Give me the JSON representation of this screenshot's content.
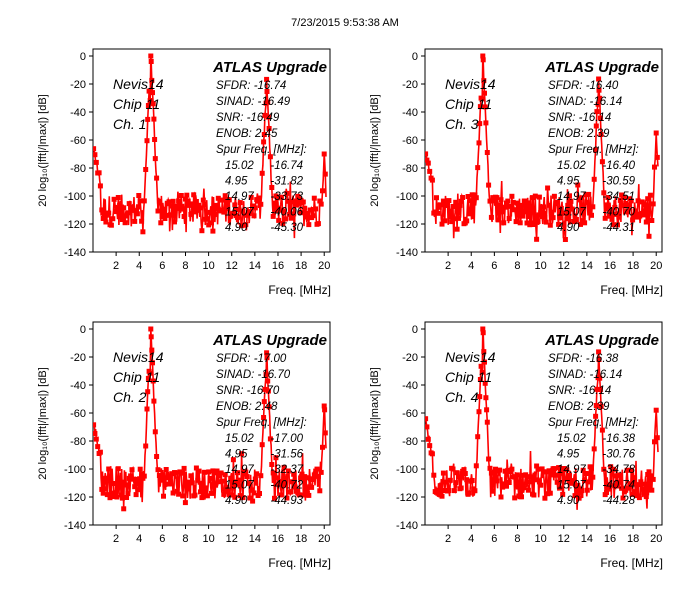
{
  "timestamp": "7/23/2015 9:53:38 AM",
  "colors": {
    "trace": "#ff0000",
    "frame": "#000000",
    "background": "#ffffff"
  },
  "chart_data": [
    {
      "type": "line",
      "title": "ATLAS Upgrade",
      "xlabel": "Freq. [MHz]",
      "ylabel": "20 log₁₀(|fft|/|max|)  [dB]",
      "xlim": [
        0,
        20.5
      ],
      "ylim": [
        -140,
        5
      ],
      "xticks": [
        2,
        4,
        6,
        8,
        10,
        12,
        14,
        16,
        18,
        20
      ],
      "yticks": [
        0,
        -20,
        -40,
        -60,
        -80,
        -100,
        -120,
        -140
      ],
      "labels": [
        "Nevis14",
        "Chip 11",
        "Ch. 1"
      ],
      "stats": [
        "SFDR: -16.74",
        "SINAD: -16.49",
        "SNR: -16.49",
        "ENOB: 2.45",
        "Spur Freq. [MHz]:"
      ],
      "spurs": [
        {
          "freq": "15.02",
          "level": "-16.74"
        },
        {
          "freq": "4.95",
          "level": "-31.82"
        },
        {
          "freq": "14.97",
          "level": "-33.73"
        },
        {
          "freq": "15.07",
          "level": "-40.06"
        },
        {
          "freq": "4.90",
          "level": "-45.30"
        }
      ],
      "peaks": [
        {
          "x": 5.0,
          "y": 0
        },
        {
          "x": 15.02,
          "y": -16.74
        },
        {
          "x": 4.95,
          "y": -31.82
        },
        {
          "x": 14.97,
          "y": -33.73
        },
        {
          "x": 20.0,
          "y": -70
        }
      ],
      "noise_floor": -110
    },
    {
      "type": "line",
      "title": "ATLAS Upgrade",
      "xlabel": "Freq. [MHz]",
      "ylabel": "20 log₁₀(|fft|/|max|)  [dB]",
      "xlim": [
        0,
        20.5
      ],
      "ylim": [
        -140,
        5
      ],
      "xticks": [
        2,
        4,
        6,
        8,
        10,
        12,
        14,
        16,
        18,
        20
      ],
      "yticks": [
        0,
        -20,
        -40,
        -60,
        -80,
        -100,
        -120,
        -140
      ],
      "labels": [
        "Nevis14",
        "Chip 11",
        "Ch. 3"
      ],
      "stats": [
        "SFDR: -16.40",
        "SINAD: -16.14",
        "SNR: -16.14",
        "ENOB: 2.39",
        "Spur Freq. [MHz]:"
      ],
      "spurs": [
        {
          "freq": "15.02",
          "level": "-16.40"
        },
        {
          "freq": "4.95",
          "level": "-30.59"
        },
        {
          "freq": "14.97",
          "level": "-34.51"
        },
        {
          "freq": "15.07",
          "level": "-40.70"
        },
        {
          "freq": "4.90",
          "level": "-44.31"
        }
      ],
      "peaks": [
        {
          "x": 5.0,
          "y": 0
        },
        {
          "x": 15.02,
          "y": -16.4
        },
        {
          "x": 4.95,
          "y": -30.59
        },
        {
          "x": 14.97,
          "y": -34.51
        },
        {
          "x": 20.0,
          "y": -55
        }
      ],
      "noise_floor": -110
    },
    {
      "type": "line",
      "title": "ATLAS Upgrade",
      "xlabel": "Freq. [MHz]",
      "ylabel": "20 log₁₀(|fft|/|max|)  [dB]",
      "xlim": [
        0,
        20.5
      ],
      "ylim": [
        -140,
        5
      ],
      "xticks": [
        2,
        4,
        6,
        8,
        10,
        12,
        14,
        16,
        18,
        20
      ],
      "yticks": [
        0,
        -20,
        -40,
        -60,
        -80,
        -100,
        -120,
        -140
      ],
      "labels": [
        "Nevis14",
        "Chip 11",
        "Ch. 2"
      ],
      "stats": [
        "SFDR: -17.00",
        "SINAD: -16.70",
        "SNR: -16.70",
        "ENOB: 2.48",
        "Spur Freq. [MHz]:"
      ],
      "spurs": [
        {
          "freq": "15.02",
          "level": "-17.00"
        },
        {
          "freq": "4.95",
          "level": "-31.56"
        },
        {
          "freq": "14.97",
          "level": "-32.37"
        },
        {
          "freq": "15.07",
          "level": "-40.72"
        },
        {
          "freq": "4.90",
          "level": "-44.93"
        }
      ],
      "peaks": [
        {
          "x": 5.0,
          "y": 0
        },
        {
          "x": 15.02,
          "y": -17.0
        },
        {
          "x": 4.95,
          "y": -31.56
        },
        {
          "x": 14.97,
          "y": -32.37
        },
        {
          "x": 20.0,
          "y": -55
        }
      ],
      "noise_floor": -110
    },
    {
      "type": "line",
      "title": "ATLAS Upgrade",
      "xlabel": "Freq. [MHz]",
      "ylabel": "20 log₁₀(|fft|/|max|)  [dB]",
      "xlim": [
        0,
        20.5
      ],
      "ylim": [
        -140,
        5
      ],
      "xticks": [
        2,
        4,
        6,
        8,
        10,
        12,
        14,
        16,
        18,
        20
      ],
      "yticks": [
        0,
        -20,
        -40,
        -60,
        -80,
        -100,
        -120,
        -140
      ],
      "labels": [
        "Nevis14",
        "Chip 11",
        "Ch. 4"
      ],
      "stats": [
        "SFDR: -16.38",
        "SINAD: -16.14",
        "SNR: -16.14",
        "ENOB: 2.39",
        "Spur Freq. [MHz]:"
      ],
      "spurs": [
        {
          "freq": "15.02",
          "level": "-16.38"
        },
        {
          "freq": "4.95",
          "level": "-30.76"
        },
        {
          "freq": "14.97",
          "level": "-34.78"
        },
        {
          "freq": "15.07",
          "level": "-40.74"
        },
        {
          "freq": "4.90",
          "level": "-44.28"
        }
      ],
      "peaks": [
        {
          "x": 5.0,
          "y": 0
        },
        {
          "x": 15.02,
          "y": -16.38
        },
        {
          "x": 4.95,
          "y": -30.76
        },
        {
          "x": 14.97,
          "y": -34.78
        },
        {
          "x": 20.0,
          "y": -58
        }
      ],
      "noise_floor": -110
    }
  ]
}
